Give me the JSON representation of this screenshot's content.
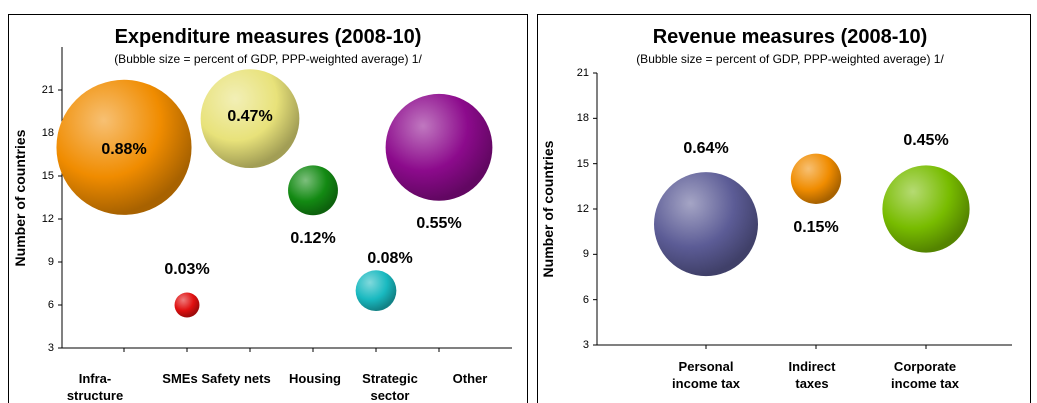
{
  "chart_data": [
    {
      "type": "bubble",
      "title": "Expenditure measures (2008-10)",
      "subtitle": "(Bubble size = percent of GDP, PPP-weighted average) 1/",
      "ylabel": "Number of countries",
      "categories": [
        "Infra-\nstructure",
        "SMEs",
        "Safety nets",
        "Housing",
        "Strategic\nsector",
        "Other"
      ],
      "values": [
        17,
        6,
        19,
        14,
        7,
        17
      ],
      "sizes": [
        0.88,
        0.03,
        0.47,
        0.12,
        0.08,
        0.55
      ],
      "value_labels": [
        "0.88%",
        "0.03%",
        "0.47%",
        "0.12%",
        "0.08%",
        "0.55%"
      ],
      "colors": [
        "#f08c00",
        "#e01010",
        "#e8e27a",
        "#138a13",
        "#19b9c0",
        "#8c0a8c"
      ],
      "ylim": [
        3,
        24
      ],
      "yticks": [
        3,
        6,
        9,
        12,
        15,
        18,
        21
      ]
    },
    {
      "type": "bubble",
      "title": "Revenue measures (2008-10)",
      "subtitle": "(Bubble size = percent of GDP, PPP-weighted average) 1/",
      "ylabel": "Number of countries",
      "categories": [
        "Personal\nincome tax",
        "Indirect\ntaxes",
        "Corporate\nincome tax"
      ],
      "values": [
        11,
        14,
        12
      ],
      "sizes": [
        0.64,
        0.15,
        0.45
      ],
      "value_labels": [
        "0.64%",
        "0.15%",
        "0.45%"
      ],
      "colors": [
        "#5c5c96",
        "#f08c00",
        "#78bc00"
      ],
      "ylim": [
        3,
        21
      ],
      "yticks": [
        3,
        6,
        9,
        12,
        15,
        18,
        21
      ]
    }
  ]
}
